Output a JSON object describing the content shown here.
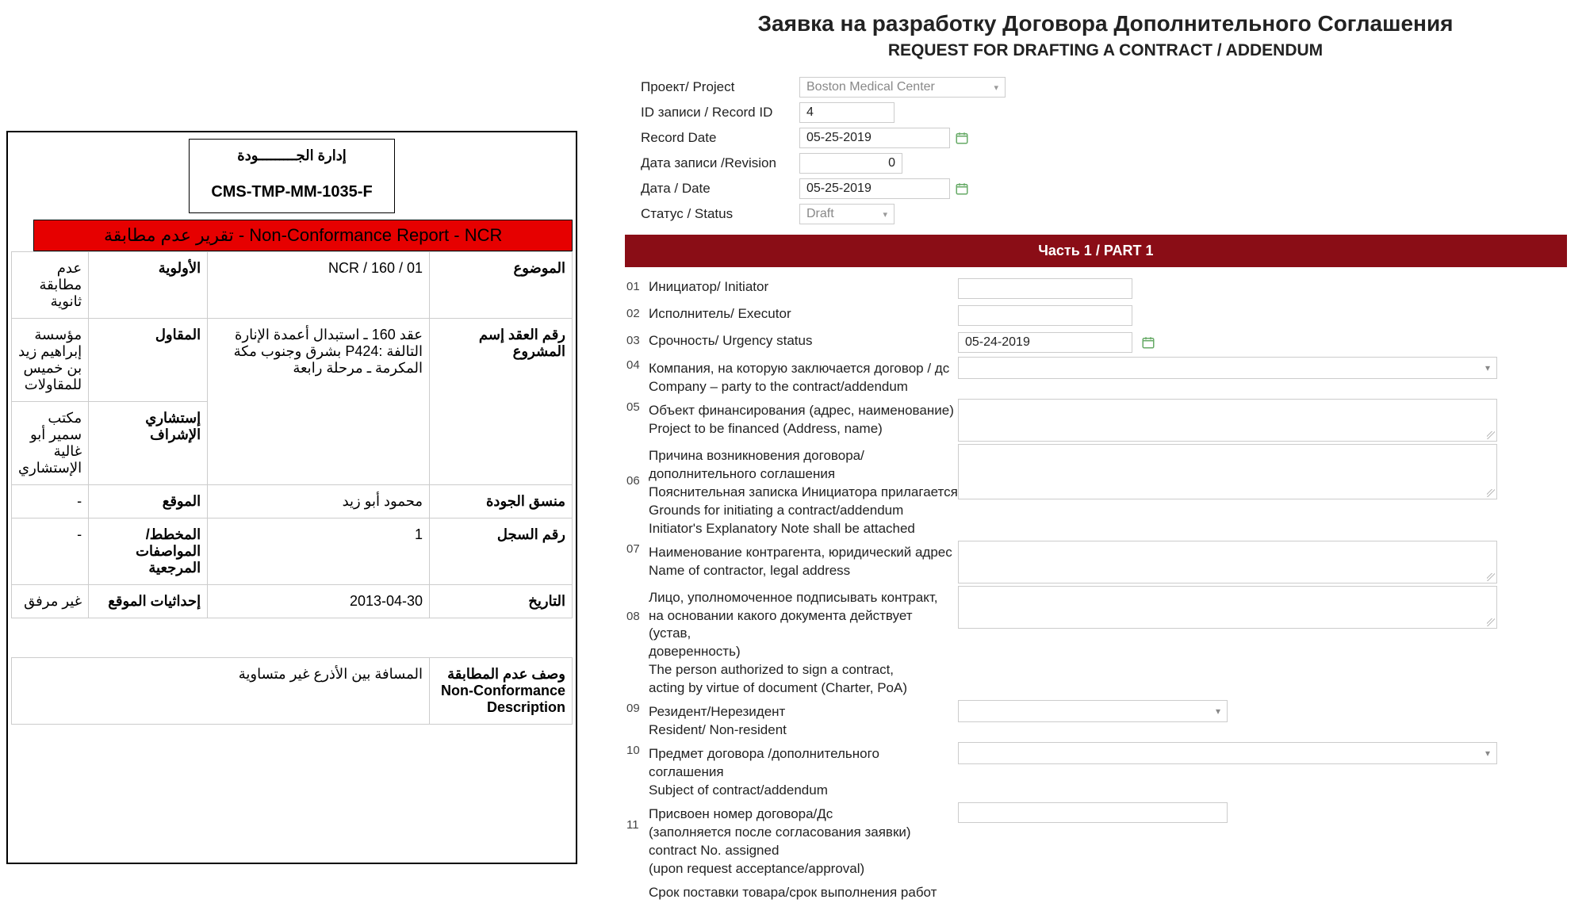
{
  "left": {
    "header_ar": "إدارة الجـــــــــودة",
    "code": "CMS-TMP-MM-1035-F",
    "ncr_bar": "Non-Conformance Report - NCR - تقرير عدم مطابقة",
    "r1": {
      "lbl_subject": "الموضوع",
      "val_subject": "NCR / 160 / 01",
      "lbl_priority": "الأولوية",
      "val_priority": "عدم مطابقة ثانوية"
    },
    "r2": {
      "lbl_contract": "رقم العقد إسم المشروع",
      "val_contract": "عقد 160 ـ استبدال أعمدة الإنارة التالفة :P424 بشرق وجنوب مكة المكرمة ـ مرحلة رابعة",
      "lbl_contractor": "المقاول",
      "val_contractor": "مؤسسة إبراهيم زيد بن خميس للمقاولات",
      "lbl_supervisor": "إستشاري الإشراف",
      "val_supervisor": "مكتب سمير أبو غالية الإستشاري"
    },
    "r3": {
      "lbl_quality": "منسق الجودة",
      "val_quality": "محمود أبو زيد",
      "lbl_location": "الموقع",
      "val_location": "-"
    },
    "r4": {
      "lbl_record": "رقم السجل",
      "val_record": "1",
      "lbl_specs": "المخطط/المواصفات المرجعية",
      "val_specs": "-"
    },
    "r5": {
      "lbl_date": "التاريخ",
      "val_date": "2013-04-30",
      "lbl_coords": "إحداثيات الموقع",
      "val_coords": "غير مرفق"
    },
    "desc": {
      "lbl_ar": "وصف عدم المطابقة",
      "lbl_en": "Non-Conformance Description",
      "val": "المسافة بين الأذرع غير متساوية"
    }
  },
  "right": {
    "title_ru": "Заявка на разработку Договора Дополнительного Соглашения",
    "title_en": "REQUEST FOR DRAFTING A CONTRACT / ADDENDUM",
    "meta": {
      "project_lbl": "Проект/ Project",
      "project_val": "Boston Medical Center",
      "recordid_lbl": "ID записи / Record ID",
      "recordid_val": "4",
      "recorddate_lbl": "Record Date",
      "recorddate_val": "05-25-2019",
      "revision_lbl": "Дата записи /Revision",
      "revision_val": "0",
      "date_lbl": "Дата / Date",
      "date_val": "05-25-2019",
      "status_lbl": "Статус / Status",
      "status_val": "Draft"
    },
    "part_bar": "Часть 1 /  PART 1",
    "rows": {
      "r01": "Инициатор/ Initiator",
      "r02": "Исполнитель/ Executor",
      "r03": "Срочность/ Urgency status",
      "r03_val": "05-24-2019",
      "r04": "Компания, на которую заключается договор / дс\nCompany – party to the contract/addendum",
      "r05": "Объект финансирования (адрес, наименование)\nProject to be financed (Address, name)",
      "r06": "Причина возникновения договора/\nдополнительного соглашения\nПояснительная записка Инициатора прилагается\nGrounds for initiating a contract/addendum\nInitiator's Explanatory Note shall be attached",
      "r07": "Наименование контрагента, юридический адрес\nName of contractor, legal address",
      "r08": "Лицо, уполномоченное подписывать контракт,\nна основании какого документа действует (устав,\nдоверенность)\nThe person authorized to sign a contract,\nacting by virtue of document (Charter, PoA)",
      "r09": "Резидент/Нерезидент\nResident/ Non-resident",
      "r10": "Предмет договора /дополнительного соглашения\nSubject of contract/addendum",
      "r11": "Присвоен номер договора/Дс\n(заполняется после согласования заявки)\ncontract No. assigned\n(upon request acceptance/approval)",
      "r12": "Срок поставки товара/срок выполнения работ"
    },
    "nums": {
      "r01": "01",
      "r02": "02",
      "r03": "03",
      "r04": "04",
      "r05": "05",
      "r06": "06",
      "r07": "07",
      "r08": "08",
      "r09": "09",
      "r10": "10",
      "r11": "11"
    },
    "chevron": "▾"
  },
  "colors": {
    "ncr_red": "#e60000",
    "part_red": "#8a0d16",
    "border_gray": "#cccccc"
  }
}
